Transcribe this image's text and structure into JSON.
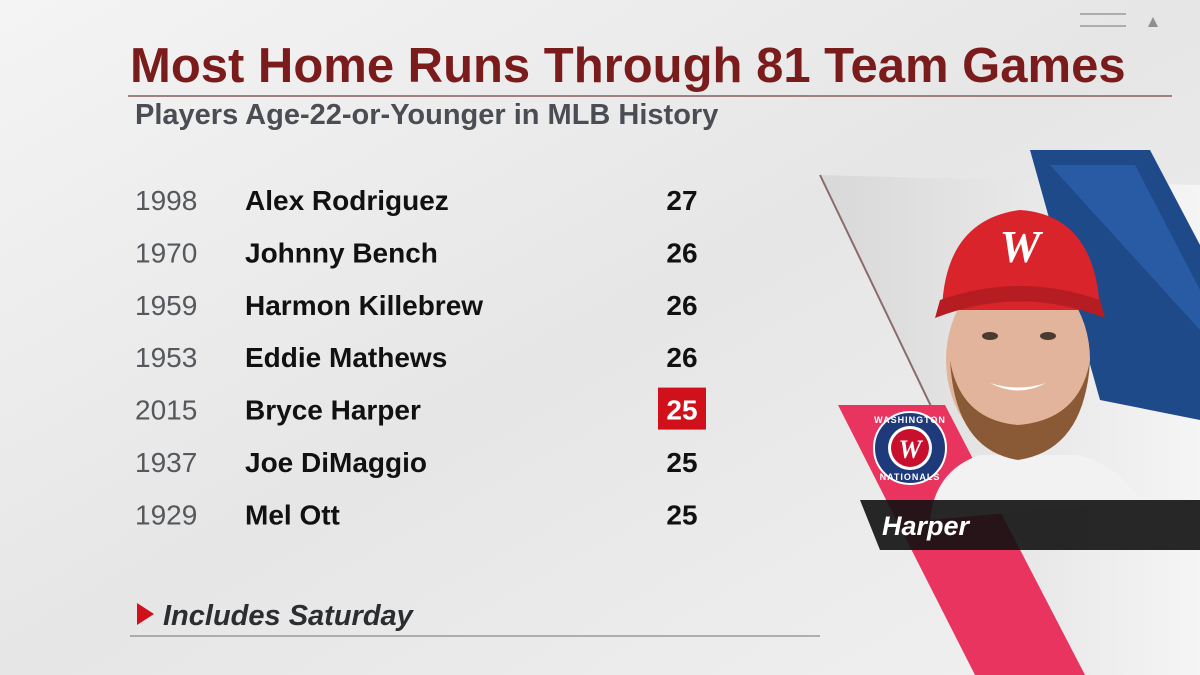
{
  "header": {
    "title": "Most Home Runs Through 81 Team Games",
    "subtitle": "Players Age-22-or-Younger in MLB History"
  },
  "table": {
    "rows": [
      {
        "year": "1998",
        "player": "Alex Rodriguez",
        "home_runs": "27"
      },
      {
        "year": "1970",
        "player": "Johnny Bench",
        "home_runs": "26"
      },
      {
        "year": "1959",
        "player": "Harmon Killebrew",
        "home_runs": "26"
      },
      {
        "year": "1953",
        "player": "Eddie Mathews",
        "home_runs": "26"
      },
      {
        "year": "2015",
        "player": "Bryce Harper",
        "home_runs": "25"
      },
      {
        "year": "1937",
        "player": "Joe DiMaggio",
        "home_runs": "25"
      },
      {
        "year": "1929",
        "player": "Mel Ott",
        "home_runs": "25"
      }
    ],
    "highlight_row": 4,
    "highlight_color": "#d0111b"
  },
  "footnote": "Includes Saturday",
  "player_tag": "Harper",
  "logo": {
    "top": "WASHINGTON",
    "bottom": "NATIONALS"
  }
}
